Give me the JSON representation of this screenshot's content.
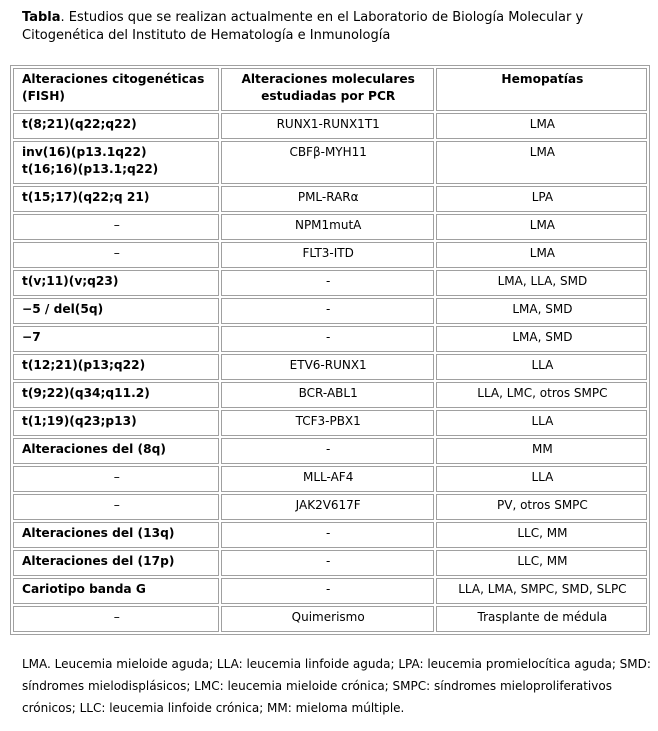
{
  "caption": {
    "label": "Tabla",
    "text": ". Estudios que se realizan actualmente en el Laboratorio de Biología Molecular y Citogenética del Instituto de Hematología e Inmunología"
  },
  "table": {
    "headers": [
      "Alteraciones citogenéticas (FISH)",
      "Alteraciones moleculares estudiadas por PCR",
      "Hemopatías"
    ],
    "rows": [
      {
        "fish": "t(8;21)(q22;q22)",
        "pcr": "RUNX1-RUNX1T1",
        "hemo": "LMA"
      },
      {
        "fish": "inv(16)(p13.1q22)\nt(16;16)(p13.1;q22)",
        "pcr": "CBFβ-MYH11",
        "hemo": "LMA"
      },
      {
        "fish": "t(15;17)(q22;q 21)",
        "pcr": "PML-RARα",
        "hemo": "LPA"
      },
      {
        "fish": "–",
        "pcr": "NPM1mutA",
        "hemo": "LMA"
      },
      {
        "fish": "–",
        "pcr": "FLT3-ITD",
        "hemo": "LMA"
      },
      {
        "fish": "t(v;11)(v;q23)",
        "pcr": "-",
        "hemo": "LMA, LLA, SMD"
      },
      {
        "fish": "−5 / del(5q)",
        "pcr": "-",
        "hemo": "LMA, SMD"
      },
      {
        "fish": "−7",
        "pcr": "-",
        "hemo": "LMA, SMD"
      },
      {
        "fish": "t(12;21)(p13;q22)",
        "pcr": "ETV6-RUNX1",
        "hemo": "LLA"
      },
      {
        "fish": "t(9;22)(q34;q11.2)",
        "pcr": "BCR-ABL1",
        "hemo": "LLA, LMC, otros SMPC"
      },
      {
        "fish": "t(1;19)(q23;p13)",
        "pcr": "TCF3-PBX1",
        "hemo": "LLA"
      },
      {
        "fish": "Alteraciones del (8q)",
        "pcr": "-",
        "hemo": "MM"
      },
      {
        "fish": "–",
        "pcr": "MLL-AF4",
        "hemo": "LLA"
      },
      {
        "fish": "–",
        "pcr": "JAK2V617F",
        "hemo": "PV, otros SMPC"
      },
      {
        "fish": "Alteraciones del (13q)",
        "pcr": "-",
        "hemo": "LLC, MM"
      },
      {
        "fish": "Alteraciones del (17p)",
        "pcr": "-",
        "hemo": "LLC, MM"
      },
      {
        "fish": "Cariotipo banda G",
        "pcr": "-",
        "hemo": "LLA, LMA, SMPC, SMD, SLPC"
      },
      {
        "fish": "–",
        "pcr": "Quimerismo",
        "hemo": "Trasplante de médula"
      }
    ]
  },
  "notes": "LMA. Leucemia mieloide aguda; LLA: leucemia linfoide aguda; LPA: leucemia promielocítica aguda; SMD: síndromes mielodisplásicos; LMC: leucemia mieloide crónica; SMPC: síndromes mieloproliferativos crónicos; LLC: leucemia linfoide crónica; MM: mieloma múltiple."
}
